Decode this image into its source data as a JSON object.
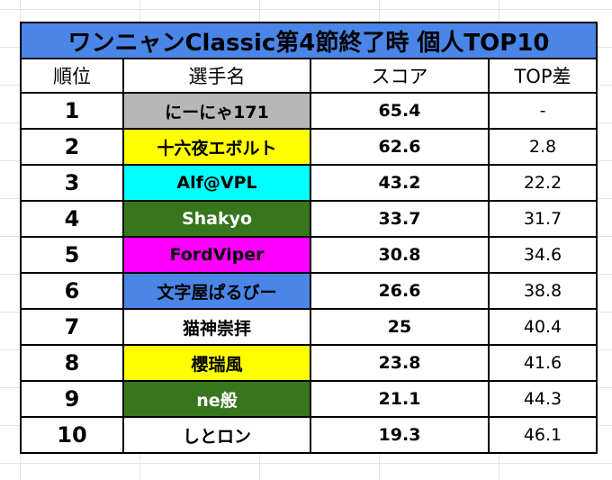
{
  "title": "ワンニャンClassic第4節終了時 個人TOP10",
  "colors": {
    "title_bg": "#4a86e8",
    "gray": "#b7b7b7",
    "yellow": "#ffff00",
    "cyan": "#00ffff",
    "green": "#38761d",
    "magenta": "#ff00ff",
    "blue": "#4a86e8",
    "white": "#ffffff"
  },
  "headers": {
    "rank": "順位",
    "name": "選手名",
    "score": "スコア",
    "diff": "TOP差"
  },
  "rows": [
    {
      "rank": "1",
      "name": "にーにゃ171",
      "score": "65.4",
      "diff": "-",
      "name_bg": "#b7b7b7",
      "name_color": "#000000"
    },
    {
      "rank": "2",
      "name": "十六夜エボルト",
      "score": "62.6",
      "diff": "2.8",
      "name_bg": "#ffff00",
      "name_color": "#000000"
    },
    {
      "rank": "3",
      "name": "Alf@VPL",
      "score": "43.2",
      "diff": "22.2",
      "name_bg": "#00ffff",
      "name_color": "#000000"
    },
    {
      "rank": "4",
      "name": "Shakyo",
      "score": "33.7",
      "diff": "31.7",
      "name_bg": "#38761d",
      "name_color": "#ffffff"
    },
    {
      "rank": "5",
      "name": "FordViper",
      "score": "30.8",
      "diff": "34.6",
      "name_bg": "#ff00ff",
      "name_color": "#000000"
    },
    {
      "rank": "6",
      "name": "文字屋ぱるびー",
      "score": "26.6",
      "diff": "38.8",
      "name_bg": "#4a86e8",
      "name_color": "#000000"
    },
    {
      "rank": "7",
      "name": "猫神崇拝",
      "score": "25",
      "diff": "40.4",
      "name_bg": "#ffffff",
      "name_color": "#000000"
    },
    {
      "rank": "8",
      "name": "櫻瑞風",
      "score": "23.8",
      "diff": "41.6",
      "name_bg": "#ffff00",
      "name_color": "#000000"
    },
    {
      "rank": "9",
      "name": "ne般",
      "score": "21.1",
      "diff": "44.3",
      "name_bg": "#38761d",
      "name_color": "#ffffff"
    },
    {
      "rank": "10",
      "name": "しとロン",
      "score": "19.3",
      "diff": "46.1",
      "name_bg": "#ffffff",
      "name_color": "#000000"
    }
  ]
}
